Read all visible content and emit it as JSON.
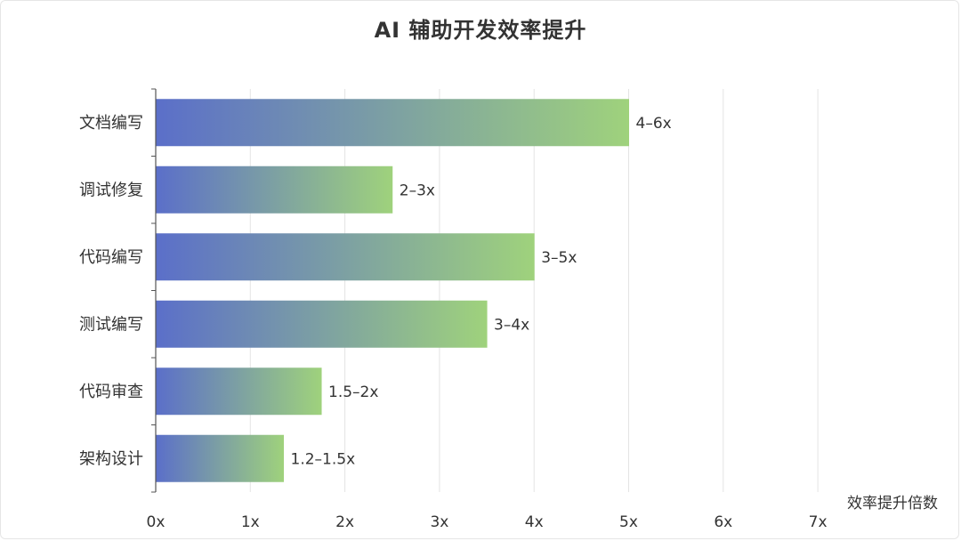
{
  "chart_data": {
    "type": "bar",
    "orientation": "horizontal",
    "title": "AI 辅助开发效率提升",
    "xlabel": "效率提升倍数",
    "ylabel": "",
    "xlim": [
      0,
      7
    ],
    "x_ticks": [
      "0x",
      "1x",
      "2x",
      "3x",
      "4x",
      "5x",
      "6x",
      "7x"
    ],
    "categories": [
      "文档编写",
      "调试修复",
      "代码编写",
      "测试编写",
      "代码审查",
      "架构设计"
    ],
    "values": [
      5,
      2.5,
      4,
      3.5,
      1.75,
      1.35
    ],
    "value_labels": [
      "4–6x",
      "2–3x",
      "3–5x",
      "3–4x",
      "1.5–2x",
      "1.2–1.5x"
    ],
    "grid": "vertical",
    "bar_gradient": [
      "#5b6fc9",
      "#9fd27c"
    ]
  }
}
